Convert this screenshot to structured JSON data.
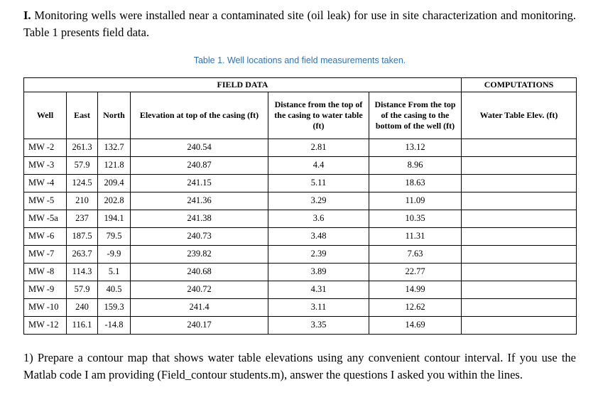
{
  "intro": {
    "numeral": "I.",
    "text": " Monitoring wells were installed near a contaminated site (oil leak) for use in site characterization and monitoring. Table 1 presents field data."
  },
  "caption": "Table 1. Well locations and field measurements taken.",
  "table": {
    "group_headers": [
      "FIELD DATA",
      "COMPUTATIONS"
    ],
    "columns": [
      "Well",
      "East",
      "North",
      "Elevation at top of the casing (ft)",
      "Distance from the top of the casing to water table (ft)",
      "Distance From the top of the casing to the bottom of the well (ft)",
      "Water Table Elev. (ft)"
    ],
    "rows": [
      [
        "MW -2",
        "261.3",
        "132.7",
        "240.54",
        "2.81",
        "13.12",
        ""
      ],
      [
        "MW -3",
        "57.9",
        "121.8",
        "240.87",
        "4.4",
        "8.96",
        ""
      ],
      [
        "MW -4",
        "124.5",
        "209.4",
        "241.15",
        "5.11",
        "18.63",
        ""
      ],
      [
        "MW -5",
        "210",
        "202.8",
        "241.36",
        "3.29",
        "11.09",
        ""
      ],
      [
        "MW -5a",
        "237",
        "194.1",
        "241.38",
        "3.6",
        "10.35",
        ""
      ],
      [
        "MW -6",
        "187.5",
        "79.5",
        "240.73",
        "3.48",
        "11.31",
        ""
      ],
      [
        "MW -7",
        "263.7",
        "-9.9",
        "239.82",
        "2.39",
        "7.63",
        ""
      ],
      [
        "MW -8",
        "114.3",
        "5.1",
        "240.68",
        "3.89",
        "22.77",
        ""
      ],
      [
        "MW -9",
        "57.9",
        "40.5",
        "240.72",
        "4.31",
        "14.99",
        ""
      ],
      [
        "MW -10",
        "240",
        "159.3",
        "241.4",
        "3.11",
        "12.62",
        ""
      ],
      [
        "MW -12",
        "116.1",
        "-14.8",
        "240.17",
        "3.35",
        "14.69",
        ""
      ]
    ]
  },
  "question": "1) Prepare a contour map that shows water table elevations using any convenient contour interval. If you use the Matlab code I am providing (Field_contour students.m), answer the questions I asked you within the lines."
}
